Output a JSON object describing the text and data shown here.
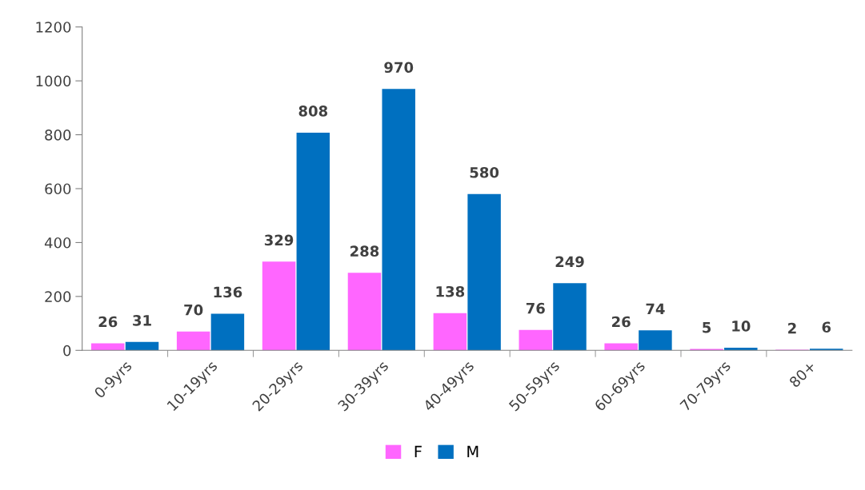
{
  "chart_data": {
    "type": "bar",
    "categories": [
      "0-9yrs",
      "10-19yrs",
      "20-29yrs",
      "30-39yrs",
      "40-49yrs",
      "50-59yrs",
      "60-69yrs",
      "70-79yrs",
      "80+"
    ],
    "series": [
      {
        "name": "F",
        "color": "#ff66ff",
        "values": [
          26,
          70,
          329,
          288,
          138,
          76,
          26,
          5,
          2
        ]
      },
      {
        "name": "M",
        "color": "#0070c0",
        "values": [
          31,
          136,
          808,
          970,
          580,
          249,
          74,
          10,
          6
        ]
      }
    ],
    "ylim": [
      0,
      1200
    ],
    "yticks": [
      0,
      200,
      400,
      600,
      800,
      1000,
      1200
    ],
    "data_labels": true,
    "grid": false,
    "legend": "bottom"
  }
}
